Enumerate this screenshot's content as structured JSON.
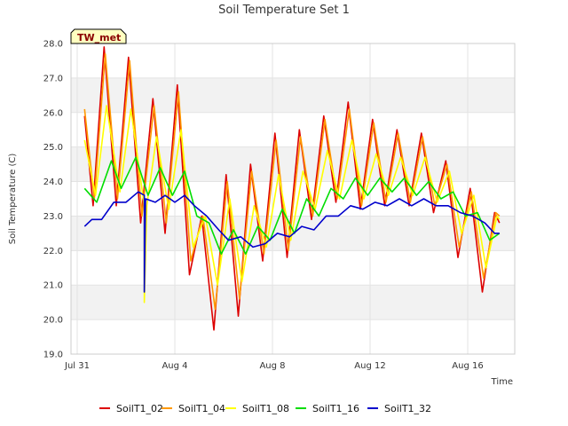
{
  "chart_data": {
    "type": "line",
    "title": "Soil Temperature Set 1",
    "badge": "TW_met",
    "xlabel": "Time",
    "ylabel": "Soil Temperature (C)",
    "xlim_days": [
      0,
      18
    ],
    "ylim": [
      19.0,
      28.0
    ],
    "yticks": [
      "19.0",
      "20.0",
      "21.0",
      "22.0",
      "23.0",
      "24.0",
      "25.0",
      "26.0",
      "27.0",
      "28.0"
    ],
    "xticks": [
      {
        "day": 0,
        "label": "Jul 31"
      },
      {
        "day": 4,
        "label": "Aug 4"
      },
      {
        "day": 8,
        "label": "Aug 8"
      },
      {
        "day": 12,
        "label": "Aug 12"
      },
      {
        "day": 16,
        "label": "Aug 16"
      }
    ],
    "grid": true,
    "legend": "bottom",
    "series": [
      {
        "name": "SoilT1_02",
        "color": "#dd0000",
        "points": [
          [
            0.3,
            25.9
          ],
          [
            0.65,
            23.3
          ],
          [
            1.1,
            27.9
          ],
          [
            1.6,
            23.3
          ],
          [
            2.1,
            27.6
          ],
          [
            2.6,
            22.8
          ],
          [
            3.1,
            26.4
          ],
          [
            3.6,
            22.5
          ],
          [
            4.1,
            26.8
          ],
          [
            4.6,
            21.3
          ],
          [
            5.1,
            23.0
          ],
          [
            5.6,
            19.7
          ],
          [
            6.1,
            24.2
          ],
          [
            6.6,
            20.1
          ],
          [
            7.1,
            24.5
          ],
          [
            7.6,
            21.7
          ],
          [
            8.1,
            25.4
          ],
          [
            8.6,
            21.8
          ],
          [
            9.1,
            25.5
          ],
          [
            9.6,
            22.9
          ],
          [
            10.1,
            25.9
          ],
          [
            10.6,
            23.4
          ],
          [
            11.1,
            26.3
          ],
          [
            11.6,
            23.2
          ],
          [
            12.1,
            25.8
          ],
          [
            12.6,
            23.3
          ],
          [
            13.1,
            25.5
          ],
          [
            13.6,
            23.3
          ],
          [
            14.1,
            25.4
          ],
          [
            14.6,
            23.1
          ],
          [
            15.1,
            24.6
          ],
          [
            15.6,
            21.8
          ],
          [
            16.1,
            23.8
          ],
          [
            16.6,
            20.8
          ],
          [
            17.1,
            23.1
          ],
          [
            17.3,
            22.8
          ]
        ]
      },
      {
        "name": "SoilT1_04",
        "color": "#ff9900",
        "points": [
          [
            0.3,
            26.1
          ],
          [
            0.7,
            23.5
          ],
          [
            1.15,
            27.7
          ],
          [
            1.65,
            23.5
          ],
          [
            2.15,
            27.5
          ],
          [
            2.65,
            23.0
          ],
          [
            3.15,
            26.2
          ],
          [
            3.65,
            22.8
          ],
          [
            4.15,
            26.6
          ],
          [
            4.65,
            21.7
          ],
          [
            5.15,
            23.0
          ],
          [
            5.65,
            20.3
          ],
          [
            6.15,
            24.0
          ],
          [
            6.65,
            20.6
          ],
          [
            7.15,
            24.3
          ],
          [
            7.65,
            21.9
          ],
          [
            8.15,
            25.2
          ],
          [
            8.65,
            22.0
          ],
          [
            9.15,
            25.3
          ],
          [
            9.65,
            23.0
          ],
          [
            10.15,
            25.8
          ],
          [
            10.65,
            23.5
          ],
          [
            11.15,
            26.1
          ],
          [
            11.65,
            23.3
          ],
          [
            12.15,
            25.7
          ],
          [
            12.65,
            23.4
          ],
          [
            13.15,
            25.4
          ],
          [
            13.65,
            23.4
          ],
          [
            14.15,
            25.3
          ],
          [
            14.65,
            23.3
          ],
          [
            15.15,
            24.5
          ],
          [
            15.65,
            22.1
          ],
          [
            16.15,
            23.7
          ],
          [
            16.65,
            21.2
          ],
          [
            17.15,
            23.1
          ],
          [
            17.3,
            23.0
          ]
        ]
      },
      {
        "name": "SoilT1_08",
        "color": "#ffff00",
        "points": [
          [
            0.3,
            25.2
          ],
          [
            0.75,
            23.6
          ],
          [
            1.2,
            26.2
          ],
          [
            1.75,
            23.7
          ],
          [
            2.2,
            26.1
          ],
          [
            2.75,
            23.3
          ],
          [
            2.75,
            20.5
          ],
          [
            2.85,
            23.3
          ],
          [
            3.25,
            25.3
          ],
          [
            3.75,
            23.2
          ],
          [
            4.25,
            25.5
          ],
          [
            4.75,
            22.1
          ],
          [
            5.25,
            23.0
          ],
          [
            5.75,
            21.0
          ],
          [
            6.25,
            23.5
          ],
          [
            6.75,
            21.1
          ],
          [
            7.25,
            23.3
          ],
          [
            7.75,
            22.1
          ],
          [
            8.25,
            24.2
          ],
          [
            8.75,
            22.3
          ],
          [
            9.25,
            24.3
          ],
          [
            9.75,
            23.2
          ],
          [
            10.25,
            24.9
          ],
          [
            10.75,
            23.5
          ],
          [
            11.25,
            25.2
          ],
          [
            11.75,
            23.5
          ],
          [
            12.25,
            24.8
          ],
          [
            12.75,
            23.6
          ],
          [
            13.25,
            24.7
          ],
          [
            13.75,
            23.6
          ],
          [
            14.25,
            24.7
          ],
          [
            14.75,
            23.4
          ],
          [
            15.25,
            24.3
          ],
          [
            15.75,
            22.5
          ],
          [
            16.25,
            23.6
          ],
          [
            16.75,
            21.5
          ],
          [
            17.2,
            23.0
          ],
          [
            17.3,
            22.9
          ]
        ]
      },
      {
        "name": "SoilT1_16",
        "color": "#00dd00",
        "points": [
          [
            0.3,
            23.8
          ],
          [
            0.8,
            23.4
          ],
          [
            1.4,
            24.6
          ],
          [
            1.8,
            23.8
          ],
          [
            2.4,
            24.7
          ],
          [
            2.9,
            23.6
          ],
          [
            3.4,
            24.4
          ],
          [
            3.9,
            23.6
          ],
          [
            4.4,
            24.3
          ],
          [
            4.9,
            23.0
          ],
          [
            5.4,
            22.8
          ],
          [
            5.9,
            21.9
          ],
          [
            6.4,
            22.6
          ],
          [
            6.9,
            21.9
          ],
          [
            7.4,
            22.7
          ],
          [
            7.9,
            22.3
          ],
          [
            8.4,
            23.2
          ],
          [
            8.9,
            22.5
          ],
          [
            9.4,
            23.5
          ],
          [
            9.9,
            23.0
          ],
          [
            10.4,
            23.8
          ],
          [
            10.9,
            23.5
          ],
          [
            11.4,
            24.1
          ],
          [
            11.9,
            23.6
          ],
          [
            12.4,
            24.1
          ],
          [
            12.9,
            23.7
          ],
          [
            13.4,
            24.1
          ],
          [
            13.9,
            23.6
          ],
          [
            14.4,
            24.0
          ],
          [
            14.9,
            23.5
          ],
          [
            15.4,
            23.7
          ],
          [
            15.9,
            23.0
          ],
          [
            16.4,
            23.1
          ],
          [
            16.9,
            22.3
          ],
          [
            17.3,
            22.5
          ]
        ]
      },
      {
        "name": "SoilT1_32",
        "color": "#0000cc",
        "points": [
          [
            0.3,
            22.7
          ],
          [
            0.6,
            22.9
          ],
          [
            1.0,
            22.9
          ],
          [
            1.5,
            23.4
          ],
          [
            2.0,
            23.4
          ],
          [
            2.5,
            23.7
          ],
          [
            2.75,
            23.6
          ],
          [
            2.75,
            20.8
          ],
          [
            2.8,
            23.5
          ],
          [
            3.2,
            23.4
          ],
          [
            3.6,
            23.6
          ],
          [
            4.0,
            23.4
          ],
          [
            4.4,
            23.6
          ],
          [
            4.8,
            23.3
          ],
          [
            5.3,
            23.0
          ],
          [
            5.8,
            22.6
          ],
          [
            6.2,
            22.3
          ],
          [
            6.7,
            22.4
          ],
          [
            7.2,
            22.1
          ],
          [
            7.7,
            22.2
          ],
          [
            8.2,
            22.5
          ],
          [
            8.7,
            22.4
          ],
          [
            9.2,
            22.7
          ],
          [
            9.7,
            22.6
          ],
          [
            10.2,
            23.0
          ],
          [
            10.7,
            23.0
          ],
          [
            11.2,
            23.3
          ],
          [
            11.7,
            23.2
          ],
          [
            12.2,
            23.4
          ],
          [
            12.7,
            23.3
          ],
          [
            13.2,
            23.5
          ],
          [
            13.7,
            23.3
          ],
          [
            14.2,
            23.5
          ],
          [
            14.7,
            23.3
          ],
          [
            15.2,
            23.3
          ],
          [
            15.7,
            23.1
          ],
          [
            16.2,
            23.0
          ],
          [
            16.7,
            22.8
          ],
          [
            17.1,
            22.5
          ],
          [
            17.3,
            22.5
          ]
        ]
      }
    ]
  }
}
